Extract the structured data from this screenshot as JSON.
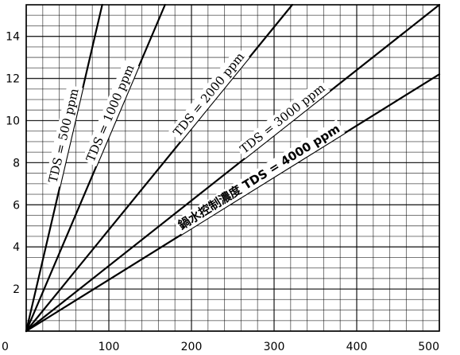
{
  "chart_data": {
    "type": "line",
    "xlabel": "",
    "ylabel": "",
    "xlim": [
      0,
      500
    ],
    "ylim": [
      0,
      15.5
    ],
    "grid": true,
    "x_ticks": [
      "0",
      "100",
      "200",
      "300",
      "400",
      "500"
    ],
    "y_ticks": [
      "2",
      "4",
      "6",
      "8",
      "10",
      "12",
      "14"
    ],
    "series": [
      {
        "name": "TDS = 500 ppm",
        "x": [
          0,
          92
        ],
        "y": [
          0,
          15.5
        ]
      },
      {
        "name": "TDS = 1000 ppm",
        "x": [
          0,
          168
        ],
        "y": [
          0,
          15.5
        ]
      },
      {
        "name": "TDS = 2000 ppm",
        "x": [
          0,
          322
        ],
        "y": [
          0,
          15.5
        ]
      },
      {
        "name": "TDS = 3000 ppm",
        "x": [
          0,
          500
        ],
        "y": [
          0,
          15.5
        ]
      },
      {
        "name": "鍋水控制濃度 TDS = 4000 ppm",
        "x": [
          0,
          500
        ],
        "y": [
          0,
          12.2
        ]
      }
    ]
  }
}
